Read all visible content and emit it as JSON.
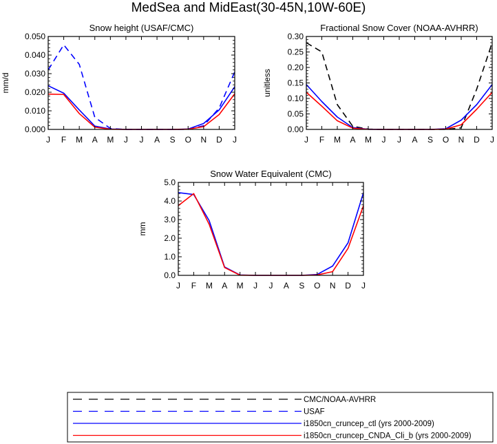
{
  "figure_title": "MedSea and MidEast(30-45N,10W-60E)",
  "chart_data": [
    {
      "type": "line",
      "title": "Snow height (USAF/CMC)",
      "xlabel": "",
      "ylabel": "mm/d",
      "x": [
        "J",
        "F",
        "M",
        "A",
        "M",
        "J",
        "J",
        "A",
        "S",
        "O",
        "N",
        "D",
        "J"
      ],
      "ylim": [
        0,
        0.05
      ],
      "yticks": [
        "0.000",
        "0.010",
        "0.020",
        "0.030",
        "0.040",
        "0.050"
      ],
      "grid": false,
      "series": [
        {
          "name": "USAF",
          "color": "#0000ff",
          "dash": "dashed",
          "values": [
            0.032,
            0.0455,
            0.035,
            0.0065,
            0.0005,
            0,
            0,
            0,
            0,
            0,
            0.002,
            0.0115,
            0.031
          ]
        },
        {
          "name": "i1850cn_cruncep_ctl (yrs 2000-2009)",
          "color": "#0000ff",
          "dash": "solid",
          "values": [
            0.0235,
            0.0195,
            0.0105,
            0.0018,
            0.0002,
            0,
            0,
            0,
            0,
            0.0002,
            0.0032,
            0.0105,
            0.023
          ]
        },
        {
          "name": "i1850cn_cruncep_CNDA_Cli_b (yrs 2000-2009)",
          "color": "#ff0000",
          "dash": "solid",
          "values": [
            0.019,
            0.0188,
            0.0085,
            0.0012,
            0.0001,
            0,
            0,
            0,
            0,
            0.0001,
            0.0015,
            0.008,
            0.0192
          ]
        }
      ]
    },
    {
      "type": "line",
      "title": "Fractional Snow Cover (NOAA-AVHRR)",
      "xlabel": "",
      "ylabel": "unitless",
      "x": [
        "J",
        "F",
        "M",
        "A",
        "M",
        "J",
        "J",
        "A",
        "S",
        "O",
        "N",
        "D",
        "J"
      ],
      "ylim": [
        0,
        0.3
      ],
      "yticks": [
        "0.00",
        "0.05",
        "0.10",
        "0.15",
        "0.20",
        "0.25",
        "0.30"
      ],
      "grid": false,
      "series": [
        {
          "name": "CMC/NOAA-AVHRR",
          "color": "#000000",
          "dash": "dashed",
          "values": [
            0.28,
            0.25,
            0.08,
            0.01,
            0.001,
            0,
            0,
            0,
            0,
            0,
            0.005,
            0.13,
            0.28
          ]
        },
        {
          "name": "i1850cn_cruncep_ctl (yrs 2000-2009)",
          "color": "#0000ff",
          "dash": "solid",
          "values": [
            0.145,
            0.09,
            0.04,
            0.006,
            0.0005,
            0,
            0,
            0,
            0,
            0.002,
            0.03,
            0.08,
            0.145
          ]
        },
        {
          "name": "i1850cn_cruncep_CNDA_Cli_b (yrs 2000-2009)",
          "color": "#ff0000",
          "dash": "solid",
          "values": [
            0.12,
            0.075,
            0.028,
            0.004,
            0.0003,
            0,
            0,
            0,
            0,
            0.001,
            0.015,
            0.065,
            0.12
          ]
        }
      ]
    },
    {
      "type": "line",
      "title": "Snow Water Equivalent (CMC)",
      "xlabel": "",
      "ylabel": "mm",
      "x": [
        "J",
        "F",
        "M",
        "A",
        "M",
        "J",
        "J",
        "A",
        "S",
        "O",
        "N",
        "D",
        "J"
      ],
      "ylim": [
        0,
        5.0
      ],
      "yticks": [
        "0.0",
        "1.0",
        "2.0",
        "3.0",
        "4.0",
        "5.0"
      ],
      "grid": false,
      "series": [
        {
          "name": "i1850cn_cruncep_ctl (yrs 2000-2009)",
          "color": "#0000ff",
          "dash": "solid",
          "values": [
            4.45,
            4.35,
            2.95,
            0.45,
            0.02,
            0,
            0,
            0,
            0,
            0.05,
            0.5,
            1.75,
            4.45
          ]
        },
        {
          "name": "i1850cn_cruncep_CNDA_Cli_b (yrs 2000-2009)",
          "color": "#ff0000",
          "dash": "solid",
          "values": [
            3.75,
            4.4,
            2.75,
            0.42,
            0.01,
            0,
            0,
            0,
            0,
            0.02,
            0.2,
            1.45,
            3.75
          ]
        }
      ]
    }
  ],
  "legend": [
    {
      "label": "CMC/NOAA-AVHRR",
      "color": "#000000",
      "dash": "dashed"
    },
    {
      "label": "USAF",
      "color": "#0000ff",
      "dash": "dashed"
    },
    {
      "label": "i1850cn_cruncep_ctl (yrs 2000-2009)",
      "color": "#0000ff",
      "dash": "solid"
    },
    {
      "label": "i1850cn_cruncep_CNDA_Cli_b (yrs 2000-2009)",
      "color": "#ff0000",
      "dash": "solid"
    }
  ]
}
